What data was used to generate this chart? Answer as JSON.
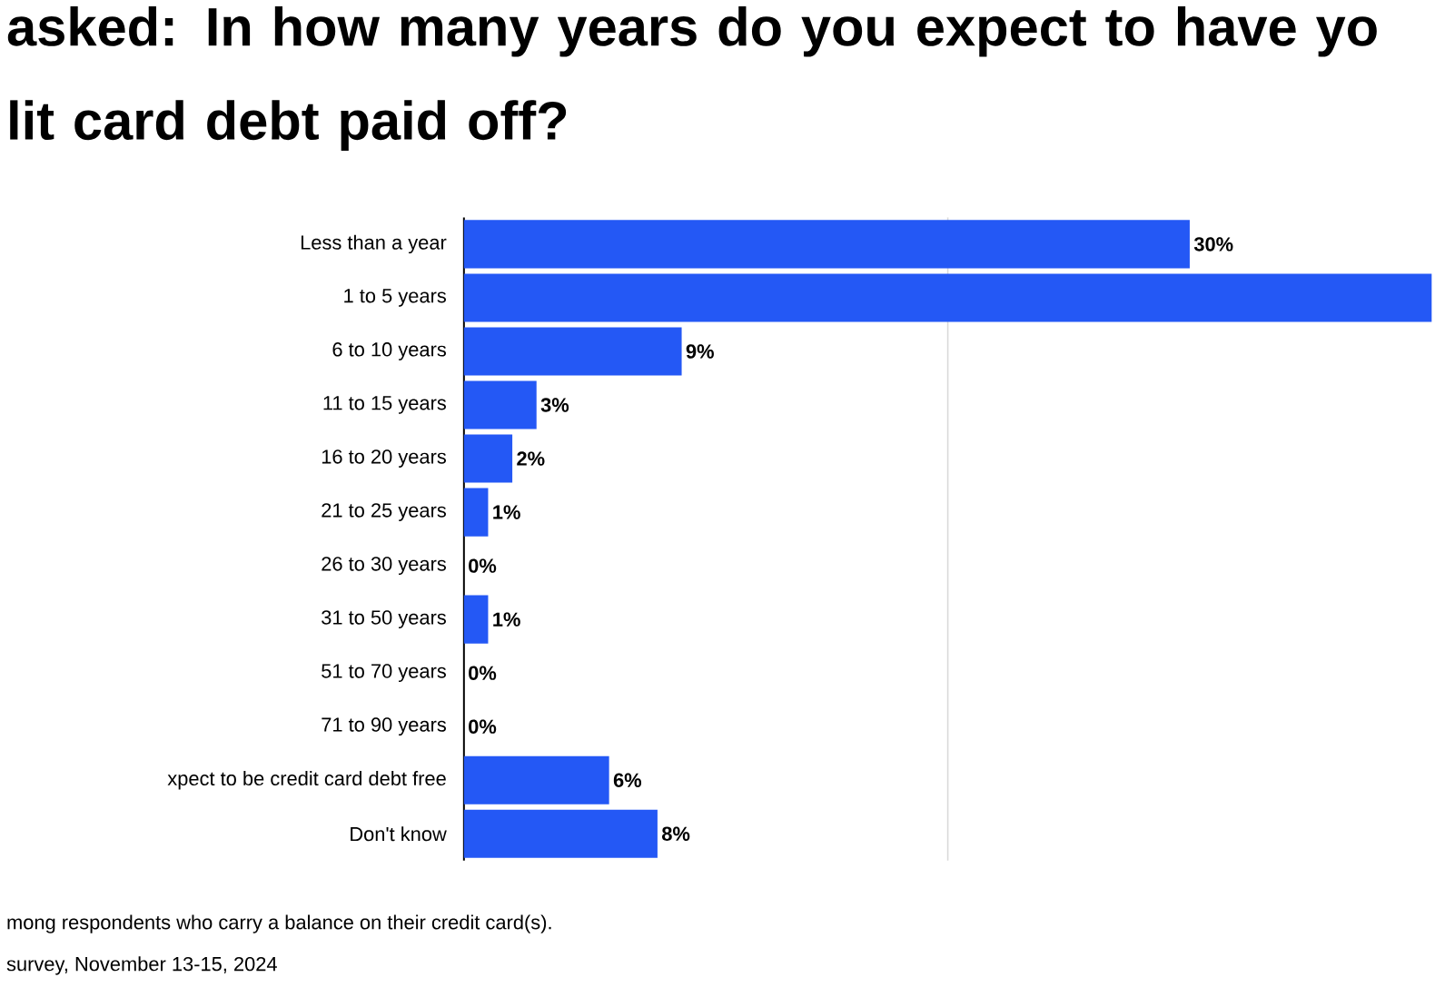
{
  "chart_data": {
    "type": "bar",
    "orientation": "horizontal",
    "title": "asked: In how many years do you expect to have yo lit card debt paid off?",
    "categories": [
      "Less than a year",
      "1 to 5 years",
      "6 to 10 years",
      "11 to 15 years",
      "16 to 20 years",
      "21 to 25 years",
      "26 to 30 years",
      "31 to 50 years",
      "51 to 70 years",
      "71 to 90 years",
      "xpect to be credit card debt free",
      "Don't know"
    ],
    "values": [
      30,
      40,
      9,
      3,
      2,
      1,
      0,
      1,
      0,
      0,
      6,
      8
    ],
    "value_labels": [
      "30%",
      null,
      "9%",
      "3%",
      "2%",
      "1%",
      "0%",
      "1%",
      "0%",
      "0%",
      "6%",
      "8%"
    ],
    "color": "#2458f5",
    "xlim": [
      0,
      40
    ],
    "ref_lines": [
      {
        "axis": "x",
        "value": 20,
        "color": "#d9d9d9"
      }
    ],
    "annotations": [
      "mong respondents who carry a balance on their credit card(s).",
      "survey, November 13-15, 2024"
    ]
  }
}
